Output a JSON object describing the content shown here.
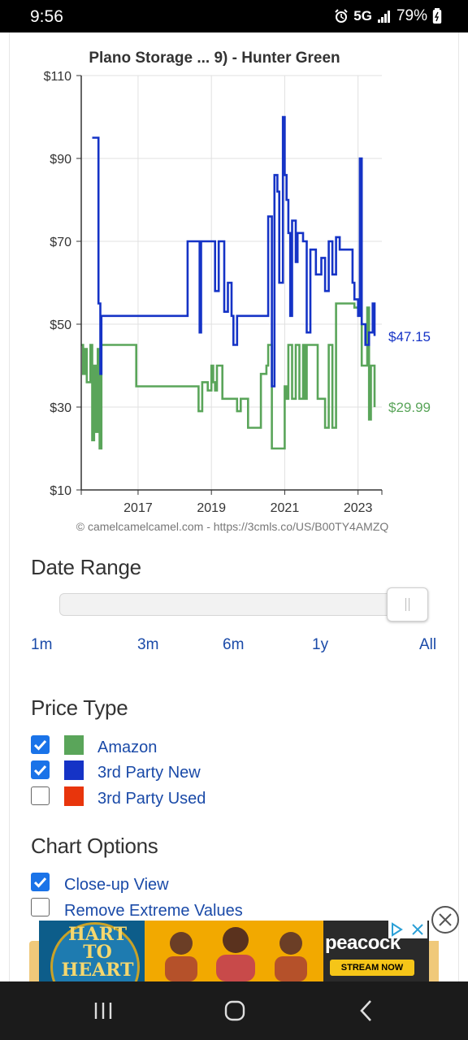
{
  "status_bar": {
    "time": "9:56",
    "network": "5G",
    "battery": "79%"
  },
  "chart": {
    "title": "Plano Storage ... 9) - Hunter Green",
    "y_ticks": [
      "$110",
      "$90",
      "$70",
      "$50",
      "$30",
      "$10"
    ],
    "x_ticks": [
      "2017",
      "2019",
      "2021",
      "2023"
    ],
    "current_3rd_party_new": "$47.15",
    "current_amazon": "$29.99",
    "credit": "© camelcamelcamel.com - https://3cmls.co/US/B00TY4AMZQ",
    "colors": {
      "amazon": "#5aa55a",
      "third_party_new": "#1533c6",
      "grid": "#e0e0e0"
    }
  },
  "chart_data": {
    "type": "line",
    "title": "Plano Storage ... 9) - Hunter Green",
    "ylim": [
      10,
      110
    ],
    "xlim": [
      2015.45,
      2023.65
    ],
    "yticks": [
      10,
      30,
      50,
      70,
      90,
      110
    ],
    "xticks": [
      2017,
      2019,
      2021,
      2023
    ],
    "series": [
      {
        "name": "3rd Party New",
        "color": "#1533c6",
        "points": [
          [
            2015.75,
            95
          ],
          [
            2015.9,
            95
          ],
          [
            2015.92,
            55
          ],
          [
            2015.97,
            38
          ],
          [
            2016.0,
            52
          ],
          [
            2016.1,
            52
          ],
          [
            2018.1,
            52
          ],
          [
            2018.3,
            52
          ],
          [
            2018.35,
            70
          ],
          [
            2018.65,
            70
          ],
          [
            2018.68,
            48
          ],
          [
            2018.72,
            70
          ],
          [
            2019.05,
            70
          ],
          [
            2019.1,
            58
          ],
          [
            2019.2,
            70
          ],
          [
            2019.3,
            70
          ],
          [
            2019.35,
            53
          ],
          [
            2019.45,
            60
          ],
          [
            2019.55,
            52
          ],
          [
            2019.6,
            45
          ],
          [
            2019.7,
            52
          ],
          [
            2020.5,
            52
          ],
          [
            2020.55,
            76
          ],
          [
            2020.65,
            35
          ],
          [
            2020.72,
            86
          ],
          [
            2020.8,
            82
          ],
          [
            2020.85,
            60
          ],
          [
            2020.95,
            100
          ],
          [
            2021.0,
            86
          ],
          [
            2021.05,
            80
          ],
          [
            2021.1,
            72
          ],
          [
            2021.15,
            52
          ],
          [
            2021.2,
            75
          ],
          [
            2021.3,
            65
          ],
          [
            2021.35,
            72
          ],
          [
            2021.5,
            70
          ],
          [
            2021.6,
            48
          ],
          [
            2021.7,
            68
          ],
          [
            2021.85,
            62
          ],
          [
            2022.0,
            66
          ],
          [
            2022.1,
            58
          ],
          [
            2022.2,
            70
          ],
          [
            2022.3,
            62
          ],
          [
            2022.4,
            71
          ],
          [
            2022.5,
            68
          ],
          [
            2022.6,
            68
          ],
          [
            2022.75,
            68
          ],
          [
            2022.85,
            60
          ],
          [
            2022.9,
            56
          ],
          [
            2023.0,
            52
          ],
          [
            2023.05,
            90
          ],
          [
            2023.1,
            50
          ],
          [
            2023.2,
            45
          ],
          [
            2023.3,
            48
          ],
          [
            2023.4,
            55
          ],
          [
            2023.45,
            47.15
          ]
        ]
      },
      {
        "name": "Amazon",
        "color": "#5aa55a",
        "points": [
          [
            2015.45,
            45
          ],
          [
            2015.5,
            38
          ],
          [
            2015.55,
            44
          ],
          [
            2015.6,
            36
          ],
          [
            2015.7,
            45
          ],
          [
            2015.75,
            22
          ],
          [
            2015.8,
            40
          ],
          [
            2015.85,
            24
          ],
          [
            2015.9,
            44
          ],
          [
            2015.95,
            20
          ],
          [
            2016.0,
            45
          ],
          [
            2016.1,
            45
          ],
          [
            2016.9,
            45
          ],
          [
            2016.95,
            35
          ],
          [
            2017.1,
            35
          ],
          [
            2018.6,
            35
          ],
          [
            2018.65,
            29
          ],
          [
            2018.75,
            36
          ],
          [
            2018.9,
            34
          ],
          [
            2019.0,
            40
          ],
          [
            2019.05,
            36
          ],
          [
            2019.1,
            34
          ],
          [
            2019.15,
            40
          ],
          [
            2019.3,
            32
          ],
          [
            2019.6,
            32
          ],
          [
            2019.7,
            29
          ],
          [
            2019.8,
            32
          ],
          [
            2019.95,
            32
          ],
          [
            2020.0,
            25
          ],
          [
            2020.3,
            25
          ],
          [
            2020.35,
            38
          ],
          [
            2020.5,
            40
          ],
          [
            2020.55,
            45
          ],
          [
            2020.65,
            20
          ],
          [
            2020.95,
            20
          ],
          [
            2021.0,
            35
          ],
          [
            2021.05,
            32
          ],
          [
            2021.1,
            45
          ],
          [
            2021.2,
            32
          ],
          [
            2021.3,
            45
          ],
          [
            2021.4,
            32
          ],
          [
            2021.5,
            45
          ],
          [
            2021.55,
            32
          ],
          [
            2021.6,
            45
          ],
          [
            2021.8,
            45
          ],
          [
            2021.9,
            32
          ],
          [
            2022.05,
            32
          ],
          [
            2022.1,
            25
          ],
          [
            2022.2,
            45
          ],
          [
            2022.3,
            25
          ],
          [
            2022.4,
            55
          ],
          [
            2022.5,
            55
          ],
          [
            2022.8,
            55
          ],
          [
            2022.9,
            54
          ],
          [
            2023.0,
            54
          ],
          [
            2023.1,
            40
          ],
          [
            2023.25,
            54
          ],
          [
            2023.3,
            27
          ],
          [
            2023.35,
            40
          ],
          [
            2023.45,
            29.99
          ]
        ]
      }
    ]
  },
  "date_range": {
    "title": "Date Range",
    "slider_position": 1.0,
    "options": [
      "1m",
      "3m",
      "6m",
      "1y",
      "All"
    ]
  },
  "price_type": {
    "title": "Price Type",
    "items": [
      {
        "label": "Amazon",
        "checked": true,
        "color": "#5aa55a"
      },
      {
        "label": "3rd Party New",
        "checked": true,
        "color": "#1533c6"
      },
      {
        "label": "3rd Party Used",
        "checked": false,
        "color": "#e8350c"
      }
    ]
  },
  "chart_options": {
    "title": "Chart Options",
    "items": [
      {
        "label": "Close-up View",
        "checked": true
      },
      {
        "label": "Remove Extreme Values",
        "checked": false
      }
    ]
  },
  "ad": {
    "show_name": "HART TO HEART",
    "brand": "peacock",
    "cta": "STREAM NOW"
  },
  "nav_bar": {
    "buttons": [
      "recent-apps",
      "home",
      "back"
    ]
  }
}
